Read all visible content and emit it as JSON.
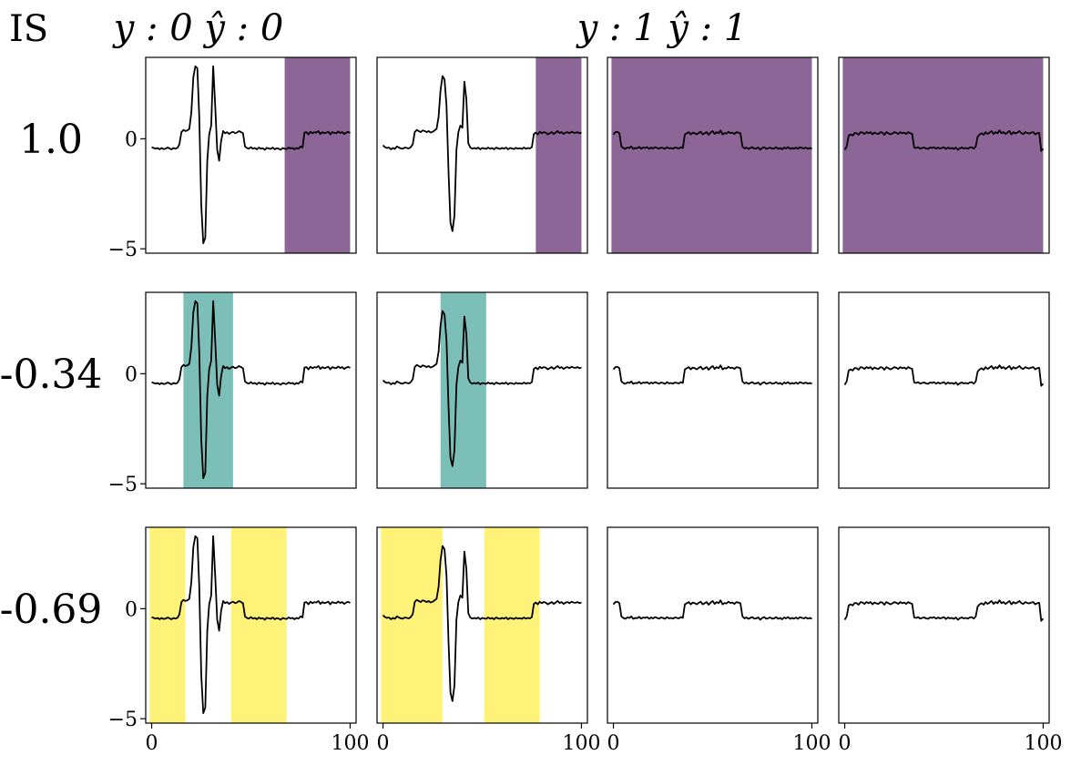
{
  "chart_data": {
    "type": "line",
    "title": "",
    "corner_label": "IS",
    "column_titles": [
      {
        "col": 0,
        "text": "y : 0  ŷ : 0"
      },
      {
        "col": 2,
        "text": "y : 1  ŷ : 1"
      }
    ],
    "rows": [
      {
        "label": "1.0",
        "color": "#8c6697"
      },
      {
        "label": "-0.34",
        "color": "#7bbfb8"
      },
      {
        "label": "-0.69",
        "color": "#fff278"
      }
    ],
    "xlim": [
      -3,
      103
    ],
    "ylim": [
      -5.2,
      3.7
    ],
    "x_ticks": [
      0,
      100
    ],
    "x_tick_labels": [
      "0",
      "100"
    ],
    "y_ticks": [
      0,
      -5
    ],
    "y_tick_labels": [
      "0",
      "−5"
    ],
    "series": [
      {
        "name": "sample 1",
        "y": [
          -0.38,
          -0.42,
          -0.45,
          -0.42,
          -0.48,
          -0.42,
          -0.47,
          -0.45,
          -0.4,
          -0.44,
          -0.48,
          -0.42,
          -0.45,
          -0.41,
          -0.25,
          0.3,
          0.4,
          0.35,
          0.38,
          0.45,
          1.2,
          2.8,
          3.3,
          3.2,
          1.0,
          -3.0,
          -4.75,
          -4.5,
          -1.0,
          0.2,
          0.6,
          3.3,
          1.5,
          -0.5,
          -1.0,
          -0.1,
          0.35,
          0.25,
          0.3,
          0.22,
          0.28,
          0.32,
          0.25,
          0.28,
          0.35,
          0.3,
          0.25,
          -0.35,
          -0.42,
          -0.45,
          -0.38,
          -0.45,
          -0.42,
          -0.48,
          -0.4,
          -0.45,
          -0.43,
          -0.5,
          -0.41,
          -0.44,
          -0.46,
          -0.4,
          -0.48,
          -0.43,
          -0.45,
          -0.5,
          -0.42,
          -0.45,
          -0.47,
          -0.4,
          -0.44,
          -0.42,
          -0.48,
          -0.42,
          -0.45,
          -0.35,
          -0.4,
          0.28,
          0.3,
          0.2,
          0.32,
          0.25,
          0.3,
          0.28,
          0.35,
          0.22,
          0.3,
          0.25,
          0.28,
          0.32,
          0.2,
          0.3,
          0.27,
          0.25,
          0.33,
          0.26,
          0.3,
          0.22,
          0.28,
          0.31,
          0.27
        ]
      },
      {
        "name": "sample 2",
        "y": [
          -0.3,
          -0.38,
          -0.42,
          -0.4,
          -0.48,
          -0.42,
          -0.46,
          -0.35,
          -0.4,
          -0.44,
          -0.45,
          -0.4,
          -0.42,
          -0.44,
          -0.38,
          -0.25,
          0.3,
          0.4,
          0.35,
          0.3,
          0.38,
          0.35,
          0.3,
          0.35,
          0.28,
          0.32,
          0.38,
          0.45,
          1.0,
          2.2,
          2.85,
          2.7,
          1.5,
          -1.5,
          -3.8,
          -4.2,
          -3.5,
          -0.5,
          0.3,
          0.6,
          0.5,
          2.6,
          1.8,
          -0.2,
          -0.4,
          -0.45,
          -0.42,
          -0.45,
          -0.4,
          -0.48,
          -0.42,
          -0.44,
          -0.46,
          -0.4,
          -0.45,
          -0.42,
          -0.48,
          -0.4,
          -0.44,
          -0.46,
          -0.42,
          -0.45,
          -0.4,
          -0.48,
          -0.42,
          -0.44,
          -0.47,
          -0.41,
          -0.45,
          -0.43,
          -0.46,
          -0.4,
          -0.45,
          -0.42,
          -0.44,
          -0.38,
          0.22,
          0.28,
          0.2,
          0.32,
          0.25,
          0.3,
          0.28,
          0.2,
          0.25,
          0.3,
          0.22,
          0.28,
          0.35,
          0.26,
          0.3,
          0.22,
          0.28,
          0.3,
          0.25,
          0.32,
          0.28,
          0.27,
          0.3,
          0.25,
          0.28
        ]
      },
      {
        "name": "sample 3",
        "y": [
          0.2,
          0.3,
          0.32,
          0.25,
          -0.35,
          -0.42,
          -0.46,
          -0.4,
          -0.42,
          -0.35,
          -0.46,
          -0.42,
          -0.43,
          -0.37,
          -0.45,
          -0.4,
          -0.42,
          -0.38,
          -0.46,
          -0.4,
          -0.44,
          -0.38,
          -0.42,
          -0.45,
          -0.4,
          -0.42,
          -0.46,
          -0.38,
          -0.44,
          -0.42,
          -0.45,
          -0.4,
          -0.42,
          -0.44,
          -0.38,
          -0.42,
          0.2,
          0.25,
          0.3,
          0.2,
          0.28,
          0.25,
          0.2,
          0.27,
          0.32,
          0.2,
          0.25,
          0.3,
          0.18,
          0.28,
          0.35,
          0.22,
          0.3,
          0.25,
          0.38,
          0.2,
          0.26,
          0.24,
          0.32,
          0.26,
          0.28,
          0.22,
          0.3,
          0.28,
          0.25,
          -0.35,
          -0.44,
          -0.4,
          -0.46,
          -0.42,
          -0.38,
          -0.45,
          -0.44,
          -0.4,
          -0.5,
          -0.42,
          -0.38,
          -0.46,
          -0.43,
          -0.4,
          -0.45,
          -0.44,
          -0.38,
          -0.46,
          -0.42,
          -0.48,
          -0.4,
          -0.44,
          -0.38,
          -0.46,
          -0.42,
          -0.45,
          -0.4,
          -0.46,
          -0.38,
          -0.42,
          -0.44,
          -0.4,
          -0.45,
          -0.42,
          -0.46
        ]
      },
      {
        "name": "sample 4",
        "y": [
          -0.5,
          -0.35,
          0.15,
          0.2,
          0.15,
          0.26,
          0.25,
          0.18,
          0.3,
          0.28,
          0.22,
          0.3,
          0.25,
          0.3,
          0.2,
          0.28,
          0.24,
          0.22,
          0.3,
          0.28,
          0.18,
          0.3,
          0.25,
          0.2,
          0.24,
          0.3,
          0.27,
          0.22,
          0.3,
          0.25,
          0.28,
          0.22,
          0.3,
          0.25,
          0.22,
          -0.4,
          -0.42,
          -0.38,
          -0.45,
          -0.42,
          -0.4,
          -0.44,
          -0.46,
          -0.4,
          -0.42,
          -0.38,
          -0.45,
          -0.4,
          -0.44,
          -0.42,
          -0.38,
          -0.47,
          -0.4,
          -0.44,
          -0.42,
          -0.46,
          -0.4,
          -0.5,
          -0.43,
          -0.4,
          -0.44,
          -0.42,
          -0.45,
          -0.4,
          -0.38,
          -0.45,
          -0.35,
          0.1,
          0.2,
          0.25,
          0.18,
          0.3,
          0.22,
          0.28,
          0.35,
          0.22,
          0.3,
          0.25,
          0.38,
          0.25,
          0.3,
          0.22,
          0.28,
          0.35,
          0.2,
          0.3,
          0.24,
          0.28,
          0.35,
          0.25,
          0.22,
          0.3,
          0.26,
          0.24,
          0.28,
          0.3,
          0.2,
          0.25,
          0.27,
          -0.55,
          -0.45
        ]
      }
    ],
    "highlights": [
      [
        [
          [
            67,
            100
          ]
        ],
        [
          [
            77,
            100
          ]
        ],
        [
          [
            -1,
            100
          ]
        ],
        [
          [
            -1,
            100
          ]
        ]
      ],
      [
        [
          [
            16,
            41
          ]
        ],
        [
          [
            29,
            52
          ]
        ],
        [],
        []
      ],
      [
        [
          [
            -1,
            17
          ],
          [
            40,
            68
          ]
        ],
        [
          [
            -1,
            30
          ],
          [
            51,
            79
          ]
        ],
        [],
        []
      ]
    ]
  }
}
